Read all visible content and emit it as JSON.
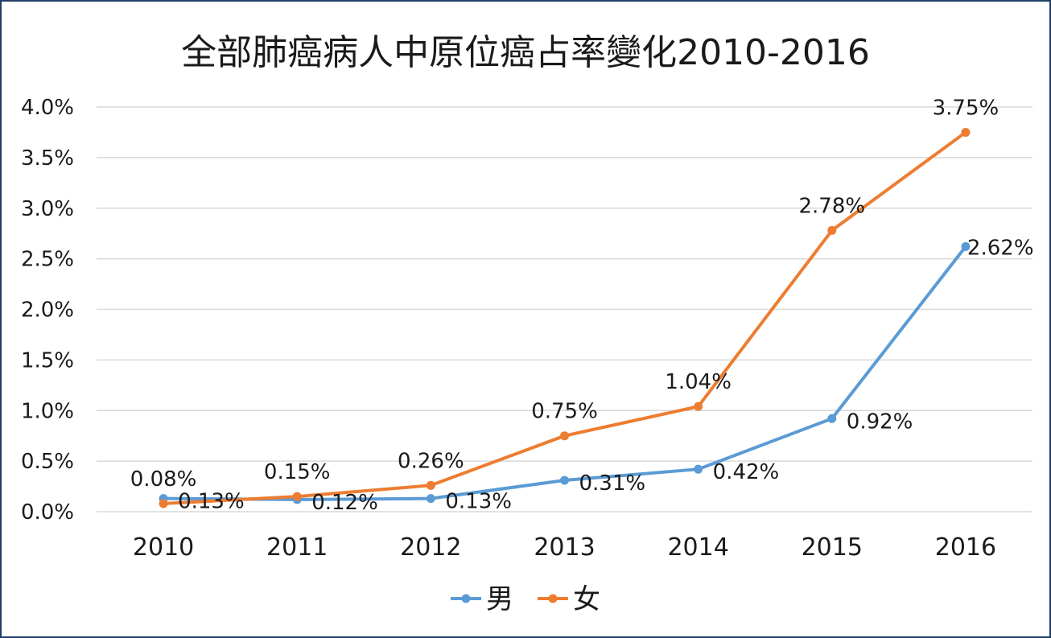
{
  "chart_data": {
    "type": "line",
    "title": "全部肺癌病人中原位癌占率變化2010-2016",
    "categories": [
      "2010",
      "2011",
      "2012",
      "2013",
      "2014",
      "2015",
      "2016"
    ],
    "ylim": [
      0,
      0.04
    ],
    "yticks": [
      "0.0%",
      "0.5%",
      "1.0%",
      "1.5%",
      "2.0%",
      "2.5%",
      "3.0%",
      "3.5%",
      "4.0%"
    ],
    "grid": true,
    "legend_position": "bottom",
    "series": [
      {
        "name": "男",
        "color": "#5b9bd5",
        "values": [
          0.0013,
          0.0012,
          0.0013,
          0.0031,
          0.0042,
          0.0092,
          0.0262
        ],
        "labels": [
          "0.13%",
          "0.12%",
          "0.13%",
          "0.31%",
          "0.42%",
          "0.92%",
          "2.62%"
        ]
      },
      {
        "name": "女",
        "color": "#ed7d31",
        "values": [
          0.0008,
          0.0015,
          0.0026,
          0.0075,
          0.0104,
          0.0278,
          0.0375
        ],
        "labels": [
          "0.08%",
          "0.15%",
          "0.26%",
          "0.75%",
          "1.04%",
          "2.78%",
          "3.75%"
        ]
      }
    ]
  }
}
